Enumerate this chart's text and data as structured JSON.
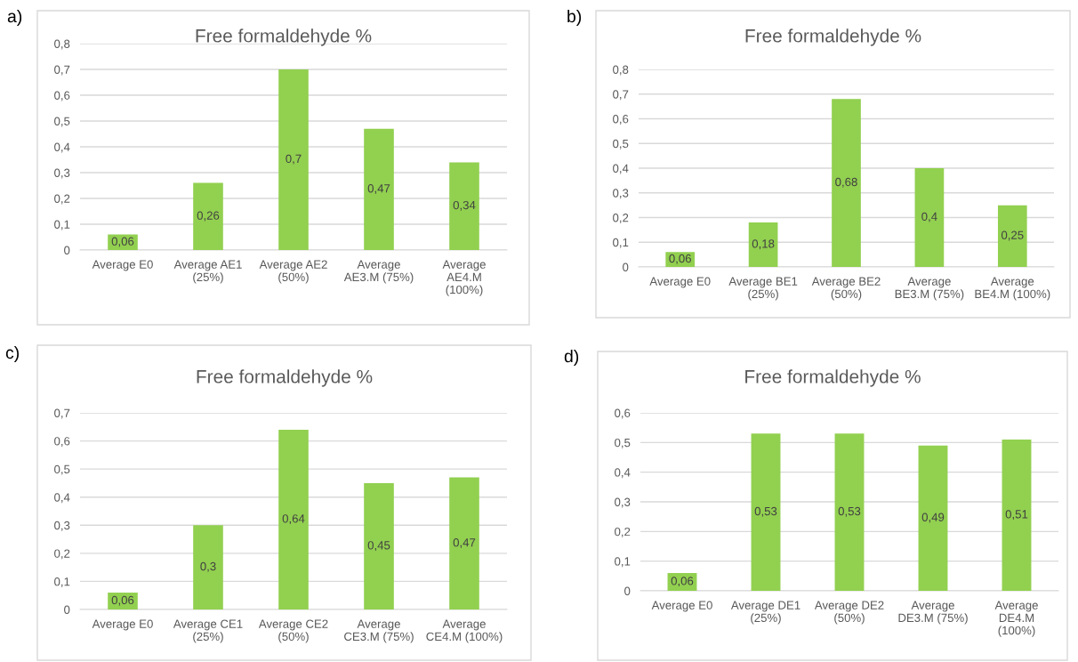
{
  "chart_data": [
    {
      "type": "bar",
      "title": "Free formaldehyde %",
      "annotations": [
        "a)"
      ],
      "color": "#92d050",
      "grid": "y",
      "categories": [
        "Average E0",
        "Average AE1\n(25%)",
        "Average AE2\n(50%)",
        "Average\nAE3.M (75%)",
        "Average\nAE4.M\n(100%)"
      ],
      "values": [
        0.06,
        0.26,
        0.7,
        0.47,
        0.34
      ],
      "value_labels": [
        "0,06",
        "0,26",
        "0,7",
        "0,47",
        "0,34"
      ],
      "ylim": [
        0,
        0.8
      ],
      "yticks": [
        0,
        {
          "value": 0.1,
          "label": "0,1"
        },
        {
          "value": 0.2,
          "label": "0,2"
        },
        {
          "value": 0.3,
          "label": "0,3"
        },
        {
          "value": 0.4,
          "label": "0,4"
        },
        {
          "value": 0.5,
          "label": "0,5"
        },
        {
          "value": 0.6,
          "label": "0,6"
        },
        {
          "value": 0.7,
          "label": "0,7"
        },
        {
          "value": 0.8,
          "label": "0,8"
        }
      ]
    },
    {
      "type": "bar",
      "title": "Free formaldehyde %",
      "annotations": [
        "b)"
      ],
      "color": "#92d050",
      "grid": "y",
      "categories": [
        "Average E0",
        "Average BE1\n(25%)",
        "Average BE2\n(50%)",
        "Average\nBE3.M (75%)",
        "Average\nBE4.M (100%)"
      ],
      "values": [
        0.06,
        0.18,
        0.68,
        0.4,
        0.25
      ],
      "value_labels": [
        "0,06",
        "0,18",
        "0,68",
        "0,4",
        "0,25"
      ],
      "ylim": [
        0,
        0.8
      ],
      "yticks": [
        0,
        {
          "value": 0.1,
          "label": "0,1"
        },
        {
          "value": 0.2,
          "label": "0,2"
        },
        {
          "value": 0.3,
          "label": "0,3"
        },
        {
          "value": 0.4,
          "label": "0,4"
        },
        {
          "value": 0.5,
          "label": "0,5"
        },
        {
          "value": 0.6,
          "label": "0,6"
        },
        {
          "value": 0.7,
          "label": "0,7"
        },
        {
          "value": 0.8,
          "label": "0,8"
        }
      ]
    },
    {
      "type": "bar",
      "title": "Free formaldehyde %",
      "annotations": [
        "c)"
      ],
      "color": "#92d050",
      "grid": "y",
      "categories": [
        "Average E0",
        "Average CE1\n(25%)",
        "Average CE2\n(50%)",
        "Average\nCE3.M (75%)",
        "Average\nCE4.M (100%)"
      ],
      "values": [
        0.06,
        0.3,
        0.64,
        0.45,
        0.47
      ],
      "value_labels": [
        "0,06",
        "0,3",
        "0,64",
        "0,45",
        "0,47"
      ],
      "ylim": [
        0,
        0.7
      ],
      "yticks": [
        0,
        {
          "value": 0.1,
          "label": "0,1"
        },
        {
          "value": 0.2,
          "label": "0,2"
        },
        {
          "value": 0.3,
          "label": "0,3"
        },
        {
          "value": 0.4,
          "label": "0,4"
        },
        {
          "value": 0.5,
          "label": "0,5"
        },
        {
          "value": 0.6,
          "label": "0,6"
        },
        {
          "value": 0.7,
          "label": "0,7"
        }
      ]
    },
    {
      "type": "bar",
      "title": "Free formaldehyde %",
      "annotations": [
        "d)"
      ],
      "color": "#92d050",
      "grid": "y",
      "categories": [
        "Average E0",
        "Average DE1\n(25%)",
        "Average DE2\n(50%)",
        "Average\nDE3.M (75%)",
        "Average\nDE4.M\n(100%)"
      ],
      "values": [
        0.06,
        0.53,
        0.53,
        0.49,
        0.51
      ],
      "value_labels": [
        "0,06",
        "0,53",
        "0,53",
        "0,49",
        "0,51"
      ],
      "ylim": [
        0,
        0.6
      ],
      "yticks": [
        0,
        {
          "value": 0.1,
          "label": "0,1"
        },
        {
          "value": 0.2,
          "label": "0,2"
        },
        {
          "value": 0.3,
          "label": "0,3"
        },
        {
          "value": 0.4,
          "label": "0,4"
        },
        {
          "value": 0.5,
          "label": "0,5"
        },
        {
          "value": 0.6,
          "label": "0,6"
        }
      ]
    }
  ]
}
